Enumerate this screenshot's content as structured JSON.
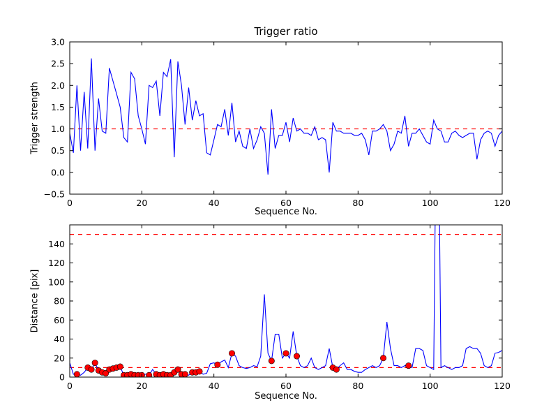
{
  "figure": {
    "background": "#ffffff",
    "axes_color": "#000000",
    "text_color": "#000000"
  },
  "chart_data": [
    {
      "type": "line",
      "title": "Trigger ratio",
      "xlabel": "Sequence No.",
      "ylabel": "Trigger strength",
      "xlim": [
        0,
        120
      ],
      "ylim": [
        -0.5,
        3.0
      ],
      "xticks": [
        0,
        20,
        40,
        60,
        80,
        100,
        120
      ],
      "xtick_labels": [
        "0",
        "20",
        "40",
        "60",
        "80",
        "100",
        "120"
      ],
      "yticks": [
        -0.5,
        0.0,
        0.5,
        1.0,
        1.5,
        2.0,
        2.5,
        3.0
      ],
      "ytick_labels": [
        "−0.5",
        "0.0",
        "0.5",
        "1.0",
        "1.5",
        "2.0",
        "2.5",
        "3.0"
      ],
      "line_color": "#0000ff",
      "grid": false,
      "legend": "none",
      "thresholds": [
        {
          "y": 1.0,
          "color": "#ff0000",
          "style": "dashed"
        }
      ],
      "x_start": 0,
      "x_step": 1,
      "values": [
        0.9,
        0.45,
        2.0,
        0.5,
        1.85,
        0.55,
        2.62,
        0.5,
        1.7,
        0.95,
        0.9,
        2.4,
        2.1,
        1.8,
        1.5,
        0.8,
        0.7,
        2.3,
        2.15,
        1.3,
        1.0,
        0.65,
        2.0,
        1.95,
        2.1,
        1.3,
        2.3,
        2.2,
        2.6,
        0.35,
        2.55,
        2.0,
        1.1,
        1.95,
        1.2,
        1.65,
        1.3,
        1.35,
        0.45,
        0.4,
        0.75,
        1.1,
        1.05,
        1.45,
        0.85,
        1.6,
        0.7,
        0.95,
        0.6,
        0.55,
        1.0,
        0.55,
        0.75,
        1.05,
        0.9,
        -0.05,
        1.45,
        0.55,
        0.85,
        0.85,
        1.15,
        0.7,
        1.25,
        0.95,
        1.0,
        0.9,
        0.9,
        0.85,
        1.05,
        0.75,
        0.8,
        0.75,
        0.0,
        1.15,
        0.95,
        0.95,
        0.9,
        0.9,
        0.9,
        0.85,
        0.85,
        0.9,
        0.75,
        0.4,
        0.95,
        0.95,
        1.0,
        1.1,
        0.95,
        0.5,
        0.65,
        0.95,
        0.9,
        1.3,
        0.6,
        0.9,
        0.9,
        1.0,
        0.85,
        0.7,
        0.65,
        1.2,
        1.0,
        0.95,
        0.7,
        0.7,
        0.9,
        0.95,
        0.85,
        0.8,
        0.85,
        0.9,
        0.9,
        0.3,
        0.75,
        0.9,
        0.95,
        0.9,
        0.6,
        0.85,
        0.95
      ]
    },
    {
      "type": "line",
      "title": "",
      "xlabel": "Sequence No.",
      "ylabel": "Distance [pix]",
      "xlim": [
        0,
        120
      ],
      "ylim": [
        0,
        160
      ],
      "xticks": [
        0,
        20,
        40,
        60,
        80,
        100,
        120
      ],
      "xtick_labels": [
        "0",
        "20",
        "40",
        "60",
        "80",
        "100",
        "120"
      ],
      "yticks": [
        0,
        20,
        40,
        60,
        80,
        100,
        120,
        140
      ],
      "ytick_labels": [
        "0",
        "20",
        "40",
        "60",
        "80",
        "100",
        "120",
        "140"
      ],
      "line_color": "#0000ff",
      "grid": false,
      "legend": "none",
      "thresholds": [
        {
          "y": 10,
          "color": "#ff0000",
          "style": "dashed"
        },
        {
          "y": 150,
          "color": "#ff0000",
          "style": "dashed"
        }
      ],
      "marker_color": "#ff0000",
      "marker_indices": [
        2,
        5,
        6,
        7,
        8,
        9,
        10,
        11,
        12,
        13,
        14,
        15,
        16,
        17,
        18,
        19,
        20,
        22,
        24,
        25,
        26,
        27,
        28,
        29,
        30,
        31,
        32,
        34,
        35,
        36,
        41,
        45,
        56,
        60,
        63,
        73,
        74,
        87,
        94
      ],
      "x_start": 0,
      "x_step": 1,
      "values": [
        15,
        3,
        3,
        2,
        5,
        10,
        8,
        15,
        7,
        5,
        4,
        8,
        9,
        10,
        11,
        2,
        2,
        3,
        2,
        2,
        2,
        3,
        2,
        8,
        3,
        2,
        3,
        2,
        2,
        5,
        8,
        3,
        3,
        2,
        5,
        5,
        6,
        3,
        4,
        14,
        15,
        13,
        16,
        18,
        10,
        25,
        22,
        12,
        10,
        9,
        10,
        12,
        11,
        22,
        87,
        25,
        17,
        45,
        45,
        20,
        25,
        20,
        48,
        22,
        12,
        10,
        12,
        20,
        10,
        8,
        10,
        12,
        30,
        10,
        8,
        12,
        15,
        8,
        8,
        6,
        5,
        5,
        8,
        10,
        12,
        10,
        12,
        20,
        58,
        30,
        12,
        12,
        10,
        12,
        12,
        10,
        30,
        30,
        28,
        12,
        10,
        8,
        400,
        10,
        12,
        10,
        8,
        10,
        10,
        12,
        30,
        32,
        30,
        30,
        25,
        12,
        10,
        12,
        25,
        26,
        28
      ]
    }
  ]
}
